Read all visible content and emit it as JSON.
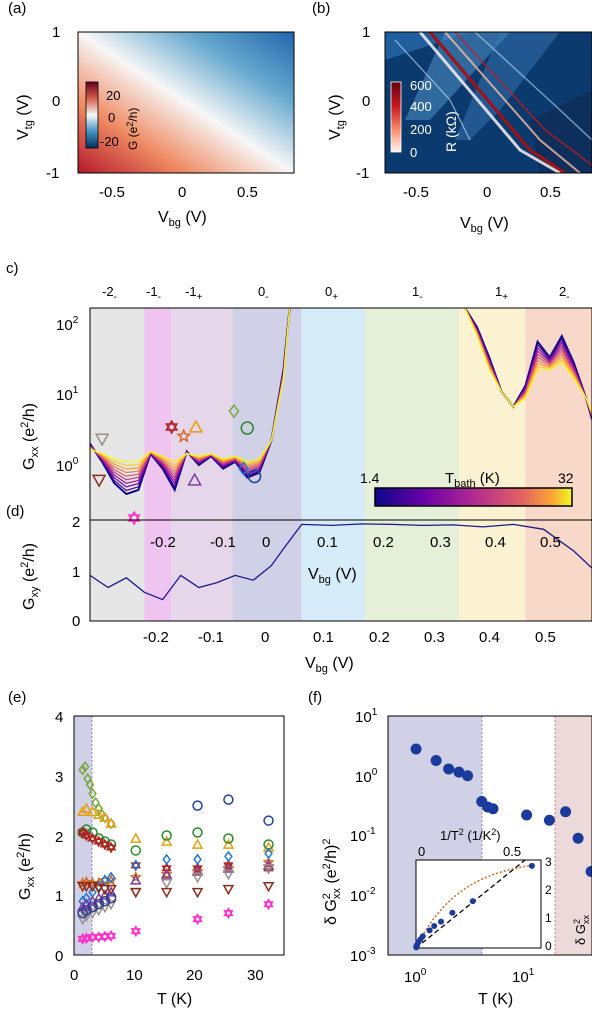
{
  "panels": {
    "a": {
      "label": "(a)",
      "xlabel_main": "V",
      "xlabel_sub": "bg",
      "xlabel_unit": " (V)",
      "ylabel_main": "V",
      "ylabel_sub": "tg",
      "ylabel_unit": " (V)",
      "xticks": [
        "-0.5",
        "0",
        "0.5"
      ],
      "yticks": [
        "1",
        "0",
        "-1"
      ],
      "colorbar_ticks": [
        "20",
        "0",
        "-20"
      ],
      "colorbar_label": "G (e",
      "colorbar_label_sup": "2",
      "colorbar_label_end": "/h)"
    },
    "b": {
      "label": "(b)",
      "xlabel_main": "V",
      "xlabel_sub": "bg",
      "xlabel_unit": " (V)",
      "ylabel_main": "V",
      "ylabel_sub": "tg",
      "ylabel_unit": " (V)",
      "xticks": [
        "-0.5",
        "0",
        "0.5"
      ],
      "yticks": [
        "1",
        "0",
        "-1"
      ],
      "colorbar_ticks": [
        "600",
        "400",
        "200",
        "0"
      ],
      "colorbar_label": "R (kΩ)"
    },
    "c": {
      "label": "c)",
      "ylabel_main": "G",
      "ylabel_sub": "xx",
      "ylabel_unit": " (e",
      "ylabel_sup": "2",
      "ylabel_end": "/h)",
      "yticks": [
        "10",
        "10",
        "10"
      ],
      "ytick_exps": [
        "2",
        "1",
        "0"
      ],
      "filling_labels": [
        {
          "main": "-2",
          "sub": "-"
        },
        {
          "main": "-1",
          "sub": "-"
        },
        {
          "main": "-1",
          "sub": "+"
        },
        {
          "main": "0",
          "sub": "-"
        },
        {
          "main": "0",
          "sub": "+"
        },
        {
          "main": "1",
          "sub": "-"
        },
        {
          "main": "1",
          "sub": "+"
        },
        {
          "main": "2",
          "sub": "-"
        }
      ],
      "colorbar_min": "1.4",
      "colorbar_max": "32",
      "colorbar_label_main": "T",
      "colorbar_label_sub": "bath",
      "colorbar_label_unit": " (K)"
    },
    "d": {
      "label": "(d)",
      "ylabel_main": "G",
      "ylabel_sub": "xy",
      "ylabel_unit": " (e",
      "ylabel_sup": "2",
      "ylabel_end": "/h)",
      "yticks": [
        "2",
        "1",
        "0"
      ],
      "top_xticks": [
        "-0.2",
        "-0.1",
        "0",
        "0.1",
        "0.2",
        "0.3",
        "0.4",
        "0.5"
      ],
      "top_xlabel_main": "V",
      "top_xlabel_sub": "bg",
      "top_xlabel_unit": " (V)",
      "xticks": [
        "-0.2",
        "-0.1",
        "0",
        "0.1",
        "0.2",
        "0.3",
        "0.4",
        "0.5"
      ],
      "xlabel_main": "V",
      "xlabel_sub": "bg",
      "xlabel_unit": " (V)"
    },
    "e": {
      "label": "(e)",
      "ylabel_main": "G",
      "ylabel_sub": "xx",
      "ylabel_unit": " (e",
      "ylabel_sup": "2",
      "ylabel_end": "/h)",
      "xlabel": "T (K)",
      "xticks": [
        "0",
        "10",
        "20",
        "30"
      ],
      "yticks": [
        "4",
        "3",
        "2",
        "1",
        "0"
      ]
    },
    "f": {
      "label": "(f)",
      "ylabel_pre": "δ G",
      "ylabel_sup1": "2",
      "ylabel_sub": "xx",
      "ylabel_unit": " (e",
      "ylabel_sup2": "2",
      "ylabel_end": "/h)",
      "ylabel_sup3": "2",
      "xlabel": "T (K)",
      "yticks": [
        "10",
        "10",
        "10",
        "10",
        "10"
      ],
      "ytick_exps": [
        "1",
        "0",
        "-1",
        "-2",
        "-3"
      ],
      "xticks": [
        "10",
        "10"
      ],
      "xtick_exps": [
        "0",
        "1"
      ],
      "inset": {
        "top_label": "1/T",
        "top_label_sup": "2",
        "top_label_end": " (1/K",
        "top_label_sup2": "2",
        "top_label_close": ")",
        "top_ticks": [
          "0",
          "0.5"
        ],
        "right_ticks": [
          "3",
          "2",
          "1",
          "0"
        ],
        "right_label": "δ G",
        "right_label_sup": "2",
        "right_label_sub": "xx"
      }
    }
  },
  "colors": {
    "axis": "#000000",
    "cmap_a_red": "#b2182b",
    "cmap_a_blue": "#2166ac",
    "cmap_b_dark": "#0b3a6e",
    "cmap_b_red": "#a50f15",
    "gxy_line": "#1a1a8c",
    "f_points": "#1a3a9c",
    "bands": [
      "#e6e6e6",
      "#f0c4f0",
      "#e6d6ea",
      "#d0d0e6",
      "#d6ecf8",
      "#e6f0d8",
      "#fbf2d2",
      "#f8d8c8"
    ]
  },
  "chart_data": [
    {
      "type": "heatmap",
      "panel": "a",
      "title": "",
      "xlabel": "Vbg (V)",
      "ylabel": "Vtg (V)",
      "xlim": [
        -0.8,
        0.8
      ],
      "ylim": [
        -1,
        1
      ],
      "colorbar_label": "G (e^2/h)",
      "colorbar_range": [
        -25,
        25
      ],
      "description_values": {
        "corner_bottom_left": 25,
        "corner_top_right": -25
      }
    },
    {
      "type": "heatmap",
      "panel": "b",
      "title": "",
      "xlabel": "Vbg (V)",
      "ylabel": "Vtg (V)",
      "xlim": [
        -0.8,
        0.8
      ],
      "ylim": [
        -1,
        1
      ],
      "colorbar_label": "R (kΩ)",
      "colorbar_range": [
        0,
        650
      ]
    },
    {
      "type": "line",
      "panel": "c",
      "ylabel": "Gxx (e^2/h)",
      "yscale": "log",
      "ylim": [
        0.15,
        150
      ],
      "xlim": [
        -0.3,
        0.53
      ],
      "temperatures_K": [
        1.4,
        2,
        3,
        4,
        6,
        10,
        15,
        20,
        25,
        32
      ],
      "temp_colorbar": [
        1.4,
        32
      ],
      "regions": [
        {
          "label": "-2-",
          "x": [
            -0.3,
            -0.21
          ]
        },
        {
          "label": "-1-",
          "x": [
            -0.21,
            -0.165
          ]
        },
        {
          "label": "-1+",
          "x": [
            -0.165,
            -0.065
          ]
        },
        {
          "label": "0-",
          "x": [
            -0.065,
            0.05
          ]
        },
        {
          "label": "0+",
          "x": [
            0.05,
            0.155
          ]
        },
        {
          "label": "1-",
          "x": [
            0.155,
            0.31
          ]
        },
        {
          "label": "1+",
          "x": [
            0.31,
            0.42
          ]
        },
        {
          "label": "2-",
          "x": [
            0.42,
            0.53
          ]
        }
      ],
      "x": [
        -0.3,
        -0.28,
        -0.26,
        -0.24,
        -0.22,
        -0.2,
        -0.18,
        -0.16,
        -0.14,
        -0.12,
        -0.1,
        -0.08,
        -0.06,
        -0.04,
        -0.02,
        0.0,
        0.02,
        0.03,
        0.32,
        0.34,
        0.36,
        0.38,
        0.4,
        0.42,
        0.44,
        0.46,
        0.48,
        0.5,
        0.52,
        0.53
      ],
      "y_lowest_T": [
        1.8,
        1.0,
        0.5,
        0.35,
        0.4,
        1.3,
        0.8,
        0.4,
        1.4,
        0.9,
        1.2,
        0.8,
        1.0,
        0.6,
        0.7,
        2.0,
        20,
        150,
        150,
        80,
        30,
        10,
        6,
        12,
        50,
        30,
        60,
        25,
        8,
        4
      ],
      "y_highest_T": [
        1.5,
        1.3,
        1.1,
        1.0,
        1.0,
        1.4,
        1.2,
        1.0,
        1.3,
        1.2,
        1.3,
        1.1,
        1.2,
        1.0,
        1.1,
        2.0,
        15,
        150,
        150,
        60,
        20,
        10,
        6,
        8,
        20,
        20,
        25,
        15,
        8,
        5
      ]
    },
    {
      "type": "line",
      "panel": "d",
      "ylabel": "Gxy (e^2/h)",
      "ylim": [
        0,
        2
      ],
      "xlim": [
        -0.3,
        0.53
      ],
      "x": [
        -0.3,
        -0.27,
        -0.24,
        -0.21,
        -0.18,
        -0.15,
        -0.12,
        -0.09,
        -0.06,
        -0.03,
        0.0,
        0.02,
        0.05,
        0.1,
        0.15,
        0.2,
        0.25,
        0.3,
        0.35,
        0.4,
        0.45,
        0.5,
        0.53
      ],
      "y": [
        0.9,
        0.65,
        0.85,
        0.55,
        0.4,
        0.9,
        0.65,
        0.75,
        0.9,
        0.8,
        1.1,
        1.45,
        1.95,
        1.93,
        1.96,
        1.95,
        1.93,
        1.94,
        1.9,
        1.95,
        1.85,
        1.4,
        1.05
      ]
    },
    {
      "type": "scatter",
      "panel": "e",
      "xlabel": "T (K)",
      "ylabel": "Gxx (e^2/h)",
      "xlim": [
        0,
        34
      ],
      "ylim": [
        0,
        4
      ],
      "series": [
        {
          "marker": "circle",
          "color": "#1f3f9f",
          "x": [
            20,
            25,
            31.5
          ],
          "y": [
            2.5,
            2.6,
            2.25
          ]
        },
        {
          "marker": "diamond",
          "color": "#77a83b",
          "x": [
            1.4,
            1.8,
            2.2,
            2.6,
            3,
            3.5,
            4,
            4.5,
            5,
            6
          ],
          "y": [
            3.1,
            3.15,
            2.95,
            2.85,
            2.7,
            2.55,
            2.45,
            2.35,
            2.3,
            2.2
          ]
        },
        {
          "marker": "triangle-up",
          "color": "#e6a00f",
          "x": [
            1.4,
            2,
            3,
            4,
            5,
            6,
            10,
            15,
            20,
            25,
            31.5
          ],
          "y": [
            2.4,
            2.45,
            2.4,
            2.35,
            2.3,
            2.2,
            1.95,
            1.9,
            1.85,
            1.85,
            1.8
          ]
        },
        {
          "marker": "circle",
          "color": "#2c8a2c",
          "x": [
            1.4,
            2,
            3,
            4,
            5,
            6,
            10,
            15,
            20,
            25,
            31.5
          ],
          "y": [
            2.05,
            2.1,
            2.05,
            1.95,
            1.9,
            1.85,
            1.75,
            2.0,
            2.05,
            1.95,
            1.85
          ]
        },
        {
          "marker": "star6",
          "color": "#b22222",
          "x": [
            1.4,
            2,
            3,
            4,
            5,
            6,
            10,
            15,
            20,
            25,
            31.5
          ],
          "y": [
            2.05,
            2.0,
            1.95,
            1.9,
            1.85,
            1.8,
            1.5,
            1.45,
            1.45,
            1.5,
            1.45
          ]
        },
        {
          "marker": "star5",
          "color": "#d2691e",
          "x": [
            1.4,
            2,
            3,
            4,
            5,
            6,
            10,
            15,
            20,
            25,
            31.5
          ],
          "y": [
            1.2,
            1.22,
            1.2,
            1.2,
            1.25,
            1.25,
            1.3,
            1.35,
            1.4,
            1.45,
            1.55
          ]
        },
        {
          "marker": "diamond",
          "color": "#1f77d4",
          "x": [
            1.4,
            2,
            3,
            4,
            5,
            6,
            10,
            15,
            20,
            25,
            31.5
          ],
          "y": [
            0.9,
            0.95,
            1.05,
            1.15,
            1.25,
            1.3,
            1.5,
            1.6,
            1.6,
            1.65,
            1.7
          ]
        },
        {
          "marker": "triangle-up",
          "color": "#7b3f9f",
          "x": [
            1.4,
            2,
            3,
            4,
            5,
            6,
            10,
            15,
            20,
            25,
            31.5
          ],
          "y": [
            0.8,
            0.85,
            0.9,
            0.95,
            1.0,
            1.05,
            1.25,
            1.35,
            1.4,
            1.45,
            1.5
          ]
        },
        {
          "marker": "triangle-down",
          "color": "#9a8e8e",
          "x": [
            1.4,
            2,
            3,
            4,
            5,
            6,
            10,
            15,
            20,
            25,
            31.5
          ],
          "y": [
            0.6,
            0.65,
            0.7,
            0.75,
            0.8,
            0.85,
            1.05,
            1.2,
            1.3,
            1.35,
            1.45
          ]
        },
        {
          "marker": "triangle-down",
          "color": "#8b2c1c",
          "x": [
            1.4,
            2,
            3,
            4,
            5,
            6,
            10,
            15,
            20,
            25,
            31.5
          ],
          "y": [
            1.15,
            1.15,
            1.15,
            1.12,
            1.1,
            1.1,
            1.05,
            1.05,
            1.05,
            1.1,
            1.15
          ]
        },
        {
          "marker": "circle",
          "color": "#2a3f8f",
          "x": [
            1.4,
            2,
            3,
            4,
            5,
            6
          ],
          "y": [
            0.7,
            0.75,
            0.8,
            0.85,
            0.9,
            0.95
          ]
        },
        {
          "marker": "star6",
          "color": "#ff33cc",
          "x": [
            1.4,
            2,
            3,
            4,
            5,
            6,
            10,
            20,
            25,
            31.5
          ],
          "y": [
            0.27,
            0.28,
            0.3,
            0.3,
            0.31,
            0.32,
            0.4,
            0.6,
            0.7,
            0.85
          ]
        }
      ]
    },
    {
      "type": "scatter",
      "panel": "f",
      "xlabel": "T (K)",
      "ylabel": "δG_xx^2 ((e^2/h)^2)",
      "xscale": "log",
      "yscale": "log",
      "xlim": [
        0.85,
        32
      ],
      "ylim": [
        0.001,
        10
      ],
      "regions": [
        {
          "x": [
            0.85,
            3.4
          ]
        },
        {
          "x": [
            16,
            32
          ]
        }
      ],
      "x": [
        1.4,
        2,
        2.5,
        3,
        3.5,
        4.5,
        5,
        5.5,
        10,
        15,
        20,
        25,
        31.5
      ],
      "y": [
        2.8,
        1.8,
        1.3,
        1.15,
        1.0,
        0.37,
        0.3,
        0.28,
        0.22,
        0.18,
        0.25,
        0.09,
        0.025
      ],
      "inset": {
        "xlabel": "1/T^2 (1/K^2)",
        "ylabel": "δG_xx^2",
        "xlim": [
          0,
          0.55
        ],
        "ylim": [
          0,
          3
        ],
        "x": [
          0.001,
          0.0016,
          0.002,
          0.0025,
          0.003,
          0.004,
          0.01,
          0.02,
          0.03,
          0.06,
          0.08,
          0.11,
          0.16,
          0.25,
          0.51
        ],
        "y": [
          0.02,
          0.03,
          0.05,
          0.06,
          0.08,
          0.1,
          0.2,
          0.3,
          0.4,
          0.6,
          0.75,
          0.9,
          1.2,
          1.6,
          2.8
        ]
      }
    }
  ]
}
